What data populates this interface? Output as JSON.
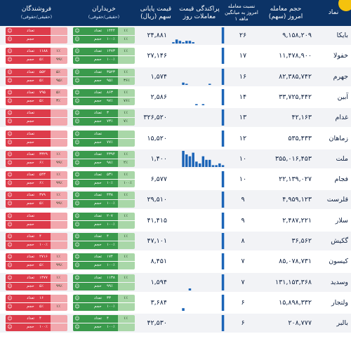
{
  "header": {
    "symbol": "نماد",
    "volume": "حجم معامله",
    "volume_sub": "امروز (سهم)",
    "ratio": "نسبت معامله",
    "ratio_sub1": "امروز به میانگین",
    "ratio_sub2": "۱ ماهه",
    "spark": "پراکندگی قیمت",
    "spark_sub": "معاملات روز",
    "price": "قیمت پایانی",
    "price_sub": "سهم (ریال)",
    "buyers": "خریداران",
    "buyers_sub": "(حقیقی/حقوقی)",
    "sellers": "فروشندگان",
    "sellers_sub": "(حقیقی/حقوقی)"
  },
  "labels": {
    "count": "تعداد",
    "volume": "حجم"
  },
  "colors": {
    "header": "#0c3366",
    "buy": "#3a9a4c",
    "buyLight": "#a9d7a8",
    "sell": "#dd3b4a",
    "sellLight": "#f2a7ad",
    "spark": "#1b64b7",
    "logo": "#f4c20d"
  },
  "icons": {
    "person": "person-icon"
  },
  "rows": [
    {
      "symbol": "بایکا",
      "volume": "۹,۱۵۸,۲۰۹",
      "ratio": "۲۶",
      "price": "۲۴,۸۸۱",
      "spark": [
        0,
        1,
        3,
        2,
        1,
        2,
        2,
        1,
        0,
        0,
        0,
        0,
        0,
        0,
        0,
        0,
        12
      ],
      "buy": {
        "count_pct": "۱٪",
        "count": "۱۴۴۴",
        "vol_pct": "۱٪",
        "vol": "۱۰۰٪"
      },
      "sell": {
        "count_pct": "",
        "count": "",
        "vol_pct": "",
        "vol": ""
      }
    },
    {
      "symbol": "خفولا",
      "volume": "۱۱,۴۷۸,۹۰۰",
      "ratio": "۱۷",
      "price": "۲۷,۱۴۶",
      "spark": [
        0,
        0,
        0,
        0,
        0,
        0,
        0,
        0,
        0,
        0,
        0,
        0,
        0,
        0,
        0,
        0,
        16
      ],
      "buy": {
        "count_pct": "۱٪",
        "count": "۱۴۷۳",
        "vol_pct": "",
        "vol": "۱۰۰٪"
      },
      "sell": {
        "count_pct": "۱٪",
        "count": "۱۱۸۸",
        "vol_pct": "۹۹٪",
        "vol": "۵٪"
      }
    },
    {
      "symbol": "جهرم",
      "volume": "۸۲,۳۸۵,۷۴۲",
      "ratio": "۱۶",
      "price": "۱,۵۷۴",
      "spark": [
        0,
        0,
        0,
        0,
        2,
        1,
        0,
        0,
        0,
        0,
        0,
        0,
        1,
        0,
        0,
        0,
        14
      ],
      "buy": {
        "count_pct": "۱٪",
        "count": "۳۵۲۳",
        "vol_pct": "۳۶٪",
        "vol": "۹۵٪"
      },
      "sell": {
        "count_pct": "۵٪",
        "count": "۵۵۲",
        "vol_pct": "۹۵٪",
        "vol": "۵٪"
      }
    },
    {
      "symbol": "آبین",
      "volume": "۳۳,۷۲۵,۴۴۲",
      "ratio": "۱۴",
      "price": "۲,۵۸۶",
      "spark": [
        0,
        0,
        0,
        0,
        0,
        0,
        0,
        0,
        1,
        0,
        1,
        0,
        0,
        0,
        0,
        0,
        14
      ],
      "buy": {
        "count_pct": "۱٪",
        "count": "۸۶۳",
        "vol_pct": "۷۶٪",
        "vol": "۹۷٪"
      },
      "sell": {
        "count_pct": "۵٪",
        "count": "۷۹۵",
        "vol_pct": "۳٪",
        "vol": "۵٪"
      }
    },
    {
      "symbol": "غدام",
      "volume": "۴۲,۱۶۳",
      "ratio": "۱۳",
      "price": "۳۲۶,۵۲۰",
      "spark": [
        0,
        0,
        0,
        0,
        0,
        0,
        0,
        0,
        0,
        0,
        0,
        0,
        0,
        0,
        0,
        0,
        12
      ],
      "buy": {
        "count_pct": "۱٪",
        "count": "۳",
        "vol_pct": "۷٪",
        "vol": "۷۳٪"
      },
      "sell": {
        "count_pct": "",
        "count": "",
        "vol_pct": "",
        "vol": ""
      }
    },
    {
      "symbol": "زماهان",
      "volume": "۵۳۵,۴۳۳",
      "ratio": "۱۲",
      "price": "۱۵,۵۲۰",
      "spark": [
        0,
        0,
        0,
        0,
        0,
        0,
        0,
        0,
        0,
        0,
        0,
        0,
        0,
        0,
        0,
        0,
        12
      ],
      "buy": {
        "count_pct": "",
        "count": "",
        "vol_pct": "",
        "vol": "۷۷٪"
      },
      "sell": {
        "count_pct": "",
        "count": "",
        "vol_pct": "",
        "vol": ""
      }
    },
    {
      "symbol": "ملت",
      "volume": "۳۵۵,۰۱۶,۴۵۳",
      "ratio": "۱۰",
      "price": "۱,۴۰۰",
      "spark": [
        0,
        0,
        0,
        0,
        9,
        7,
        6,
        8,
        3,
        2,
        6,
        4,
        4,
        1,
        1,
        2,
        1
      ],
      "buy": {
        "count_pct": "۱٪",
        "count": "۴۳۹۴",
        "vol_pct": "۲٪",
        "vol": "۹۸٪"
      },
      "sell": {
        "count_pct": "۱٪",
        "count": "۳۳۲۹",
        "vol_pct": "۹۹٪",
        "vol": "۶٪"
      }
    },
    {
      "symbol": "فجام",
      "volume": "۲۲,۱۳۹,۰۲۷",
      "ratio": "۱۰",
      "price": "۶,۵۷۷",
      "spark": [
        0,
        0,
        0,
        0,
        0,
        0,
        0,
        0,
        0,
        0,
        0,
        0,
        0,
        0,
        0,
        0,
        12
      ],
      "buy": {
        "count_pct": "۱٪",
        "count": "۵۳۱",
        "vol_pct": "۱۰۰٪",
        "vol": "۱۰٪"
      },
      "sell": {
        "count_pct": "۱٪",
        "count": "۵۴۳",
        "vol_pct": "۹۹٪",
        "vol": "۶٪"
      }
    },
    {
      "symbol": "قلرست",
      "volume": "۴,۹۵۹,۱۲۳",
      "ratio": "۹",
      "price": "۲۹,۵۱۰",
      "spark": [
        0,
        0,
        0,
        0,
        0,
        0,
        0,
        0,
        0,
        0,
        0,
        0,
        0,
        0,
        0,
        0,
        11
      ],
      "buy": {
        "count_pct": "۱٪",
        "count": "۴۳۸",
        "vol_pct": "",
        "vol": "۱۰۰٪"
      },
      "sell": {
        "count_pct": "۱٪",
        "count": "۳۷۹",
        "vol_pct": "۹۹٪",
        "vol": "۵٪"
      }
    },
    {
      "symbol": "سلار",
      "volume": "۲,۴۸۷,۲۲۱",
      "ratio": "۹",
      "price": "۴۱,۴۱۵",
      "spark": [
        0,
        0,
        0,
        0,
        0,
        0,
        0,
        0,
        0,
        0,
        0,
        0,
        0,
        0,
        0,
        0,
        11
      ],
      "buy": {
        "count_pct": "۱٪",
        "count": "۲۰۷",
        "vol_pct": "",
        "vol": "۱۰۰٪"
      },
      "sell": {
        "count_pct": "",
        "count": "",
        "vol_pct": "",
        "vol": ""
      }
    },
    {
      "symbol": "گکیش",
      "volume": "۳۶,۵۶۲",
      "ratio": "۸",
      "price": "۴۷,۱۰۱",
      "spark": [
        0,
        0,
        0,
        0,
        0,
        0,
        0,
        0,
        0,
        0,
        0,
        0,
        0,
        0,
        0,
        0,
        10
      ],
      "buy": {
        "count_pct": "۱٪",
        "count": "۴",
        "vol_pct": "",
        "vol": "۱۰۰٪"
      },
      "sell": {
        "count_pct": "",
        "count": "۴",
        "vol_pct": "",
        "vol": "۱۰۰٪"
      }
    },
    {
      "symbol": "کیسون",
      "volume": "۸۵,۰۷۸,۷۳۱",
      "ratio": "۷",
      "price": "۸,۴۵۱",
      "spark": [
        0,
        0,
        0,
        0,
        0,
        0,
        0,
        0,
        0,
        0,
        0,
        0,
        0,
        0,
        0,
        0,
        9
      ],
      "buy": {
        "count_pct": "۱٪",
        "count": "۱۷۴",
        "vol_pct": "",
        "vol": "۱۰۰٪"
      },
      "sell": {
        "count_pct": "۱٪",
        "count": "۲۷۱۶",
        "vol_pct": "۹۹٪",
        "vol": "۵٪"
      }
    },
    {
      "symbol": "وسدید",
      "volume": "۱۳۱,۱۵۳,۳۶۸",
      "ratio": "۷",
      "price": "۱,۵۹۴",
      "spark": [
        0,
        0,
        0,
        0,
        0,
        0,
        1,
        0,
        0,
        0,
        0,
        0,
        0,
        0,
        0,
        0,
        8
      ],
      "buy": {
        "count_pct": "۱٪",
        "count": "۱۱۳۸",
        "vol_pct": "",
        "vol": "۹۹٪"
      },
      "sell": {
        "count_pct": "۱٪",
        "count": "۱۴۷۷",
        "vol_pct": "۹۹٪",
        "vol": "۵٪"
      }
    },
    {
      "symbol": "ولتجار",
      "volume": "۱۵,۸۹۸,۳۳۲",
      "ratio": "۶",
      "price": "۳,۶۸۴",
      "spark": [
        0,
        0,
        0,
        0,
        1,
        0,
        0,
        0,
        0,
        0,
        0,
        0,
        0,
        0,
        0,
        0,
        6
      ],
      "buy": {
        "count_pct": "۱٪",
        "count": "۳۳",
        "vol_pct": "",
        "vol": "۱۰۰٪"
      },
      "sell": {
        "count_pct": "",
        "count": "۱۶",
        "vol_pct": "۱٪",
        "vol": "۵٪"
      }
    },
    {
      "symbol": "بالبر",
      "volume": "۲۰۸,۷۷۷",
      "ratio": "۶",
      "price": "۴۲,۵۳۰",
      "spark": [
        0,
        0,
        0,
        0,
        0,
        0,
        0,
        0,
        0,
        0,
        0,
        0,
        0,
        0,
        0,
        0,
        6
      ],
      "buy": {
        "count_pct": "۱٪",
        "count": "۴",
        "vol_pct": "",
        "vol": "۱۰۰٪"
      },
      "sell": {
        "count_pct": "",
        "count": "۴",
        "vol_pct": "",
        "vol": "۱۰۰٪"
      }
    }
  ]
}
